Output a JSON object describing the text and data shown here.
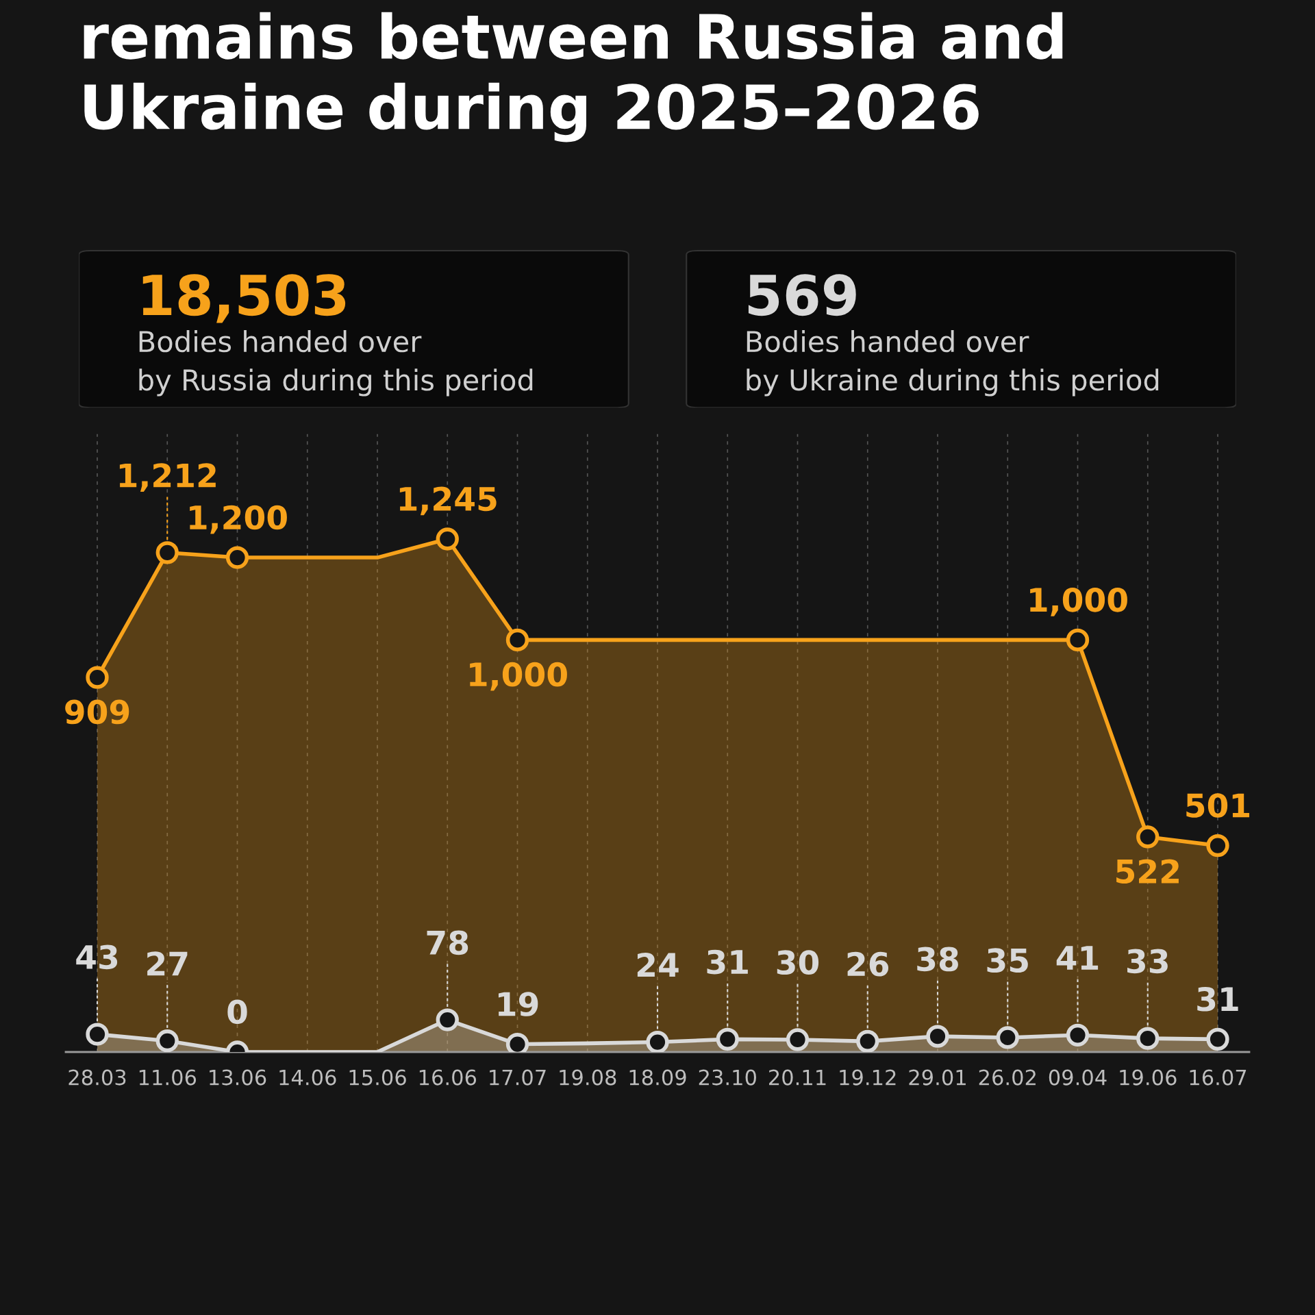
{
  "chart_data": [
    {
      "type": "other",
      "title": "remains between Russia and\nUkraine during 2025–2026",
      "annotations": [
        "18,503",
        "Bodies handed over\nby Russia during this period",
        "569",
        "Bodies handed over\nby Ukraine during this period"
      ],
      "colors": [
        "#f7a21b",
        "#d9d9d9"
      ]
    },
    {
      "type": "area",
      "categories": [
        "28.03",
        "11.06",
        "13.06",
        "14.06",
        "15.06",
        "16.06",
        "17.07",
        "19.08",
        "18.09",
        "23.10",
        "20.11",
        "19.12",
        "29.01",
        "26.02",
        "09.04",
        "19.06",
        "16.07"
      ],
      "series": [
        {
          "color": "#f7a21b",
          "x": [
            "28.03",
            "11.06",
            "13.06",
            "14.06",
            "15.06",
            "16.06",
            "17.07",
            "09.04",
            "19.06",
            "16.07"
          ],
          "values": [
            909,
            1212,
            1200,
            1200,
            1200,
            1245,
            1000,
            1000,
            522,
            501
          ],
          "value_labels": [
            "909",
            "1,212",
            "1,200",
            null,
            null,
            "1,245",
            "1,000",
            "1,000",
            "522",
            "501"
          ]
        },
        {
          "color": "#d9d9d9",
          "values": [
            43,
            27,
            0,
            0,
            0,
            78,
            19,
            21,
            24,
            31,
            30,
            26,
            38,
            35,
            41,
            33,
            31
          ],
          "value_labels": [
            "43",
            "27",
            "0",
            null,
            null,
            "78",
            "19",
            null,
            "24",
            "31",
            "30",
            "26",
            "38",
            "35",
            "41",
            "33",
            "31"
          ]
        }
      ],
      "ylim": [
        0,
        1500
      ],
      "tick_labels": "x",
      "grid": "x",
      "legend": false,
      "marker": "circle",
      "line_style": "solid"
    }
  ]
}
